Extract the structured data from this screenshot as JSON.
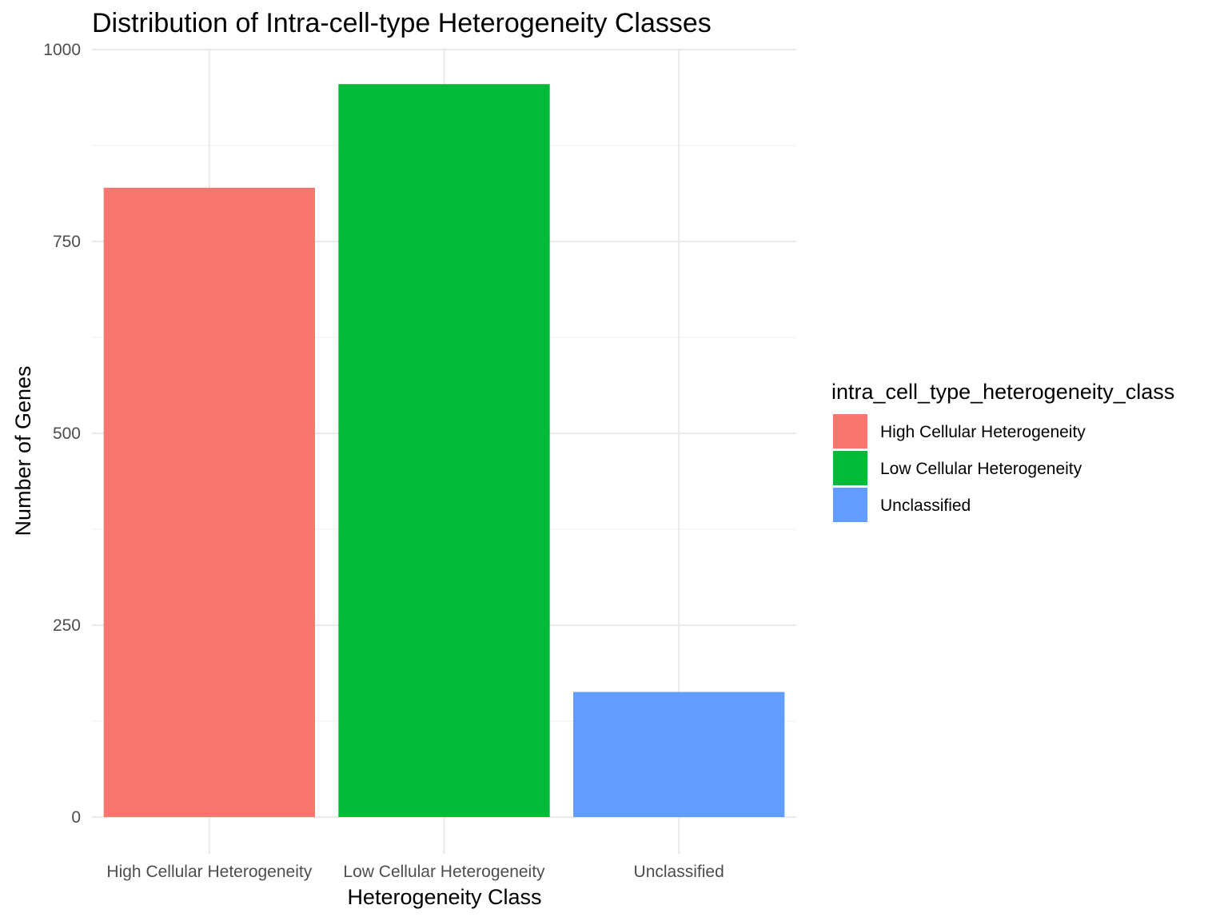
{
  "chart_data": {
    "type": "bar",
    "title": "Distribution of Intra-cell-type Heterogeneity Classes",
    "xlabel": "Heterogeneity Class",
    "ylabel": "Number of Genes",
    "categories": [
      "High Cellular Heterogeneity",
      "Low Cellular Heterogeneity",
      "Unclassified"
    ],
    "values": [
      820,
      955,
      163
    ],
    "colors": [
      "#F8766D",
      "#00BA38",
      "#619CFF"
    ],
    "ylim": [
      0,
      1000
    ],
    "yticks": [
      0,
      250,
      500,
      750,
      1000
    ],
    "ytick_labels": [
      "0",
      "250",
      "500",
      "750",
      "1000"
    ],
    "grid": true,
    "legend": {
      "title": "intra_cell_type_heterogeneity_class",
      "position": "right",
      "entries": [
        "High Cellular Heterogeneity",
        "Low Cellular Heterogeneity",
        "Unclassified"
      ]
    }
  }
}
